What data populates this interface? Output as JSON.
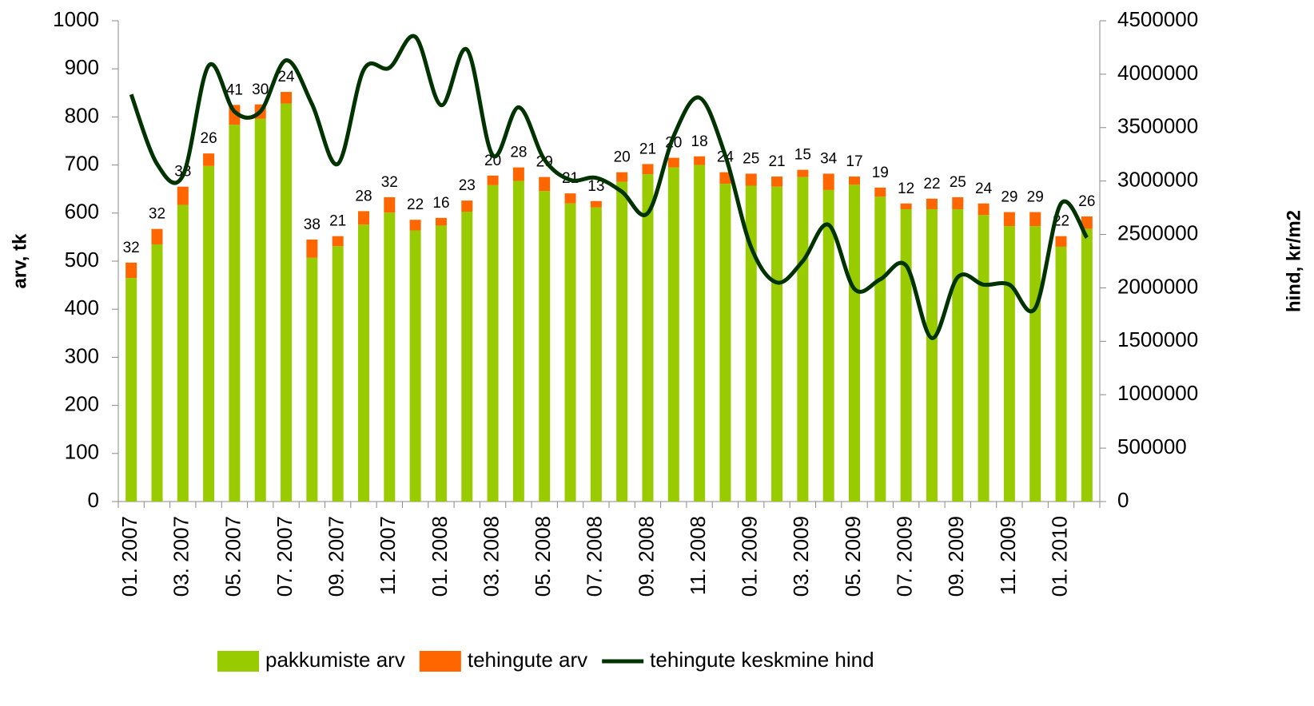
{
  "chart_data": {
    "type": "bar",
    "stacked": true,
    "y_label": "arv, tk",
    "y2_label": "hind, kr/m2",
    "categories": [
      "01. 2007",
      null,
      "03. 2007",
      null,
      "05. 2007",
      null,
      "07. 2007",
      null,
      "09. 2007",
      null,
      "11. 2007",
      null,
      "01. 2008",
      null,
      "03. 2008",
      null,
      "05. 2008",
      null,
      "07. 2008",
      null,
      "09. 2008",
      null,
      "11. 2008",
      null,
      "01. 2009",
      null,
      "03. 2009",
      null,
      "05. 2009",
      null,
      "07. 2009",
      null,
      "09. 2009",
      null,
      "11. 2009",
      null,
      "01. 2010",
      null
    ],
    "series": [
      {
        "name": "pakkumiste arv",
        "color": "#99cc00",
        "values": [
          465,
          535,
          617,
          698,
          784,
          796,
          828,
          507,
          531,
          576,
          601,
          564,
          574,
          603,
          658,
          667,
          646,
          620,
          612,
          665,
          681,
          695,
          700,
          661,
          657,
          655,
          675,
          648,
          659,
          634,
          608,
          608,
          608,
          596,
          573,
          573,
          530,
          567
        ]
      },
      {
        "name": "tehingute arv",
        "color": "#ff6600",
        "labels": true,
        "values": [
          32,
          32,
          38,
          26,
          41,
          30,
          24,
          38,
          21,
          28,
          32,
          22,
          16,
          23,
          20,
          28,
          29,
          21,
          13,
          20,
          21,
          20,
          18,
          24,
          25,
          21,
          15,
          34,
          17,
          19,
          12,
          22,
          25,
          24,
          29,
          29,
          22,
          26
        ]
      },
      {
        "name": "tehingute keskmine hind",
        "color": "#003300",
        "type": "line",
        "axis": "y2",
        "values": [
          3810000,
          3160000,
          3050000,
          4080000,
          3650000,
          3650000,
          4130000,
          3720000,
          3160000,
          4040000,
          4060000,
          4350000,
          3710000,
          4230000,
          3240000,
          3690000,
          3200000,
          3010000,
          3030000,
          2900000,
          2700000,
          3420000,
          3780000,
          3240000,
          2380000,
          2050000,
          2250000,
          2590000,
          1990000,
          2080000,
          2210000,
          1530000,
          2100000,
          2030000,
          2030000,
          1810000,
          2790000,
          2470000
        ]
      }
    ],
    "ylim": [
      0,
      1000
    ],
    "yticks": [
      0,
      100,
      200,
      300,
      400,
      500,
      600,
      700,
      800,
      900,
      1000
    ],
    "y2lim": [
      0,
      4500000
    ],
    "y2ticks": [
      0,
      500000,
      1000000,
      1500000,
      2000000,
      2500000,
      3000000,
      3500000,
      4000000,
      4500000
    ],
    "legend": "bottom"
  }
}
